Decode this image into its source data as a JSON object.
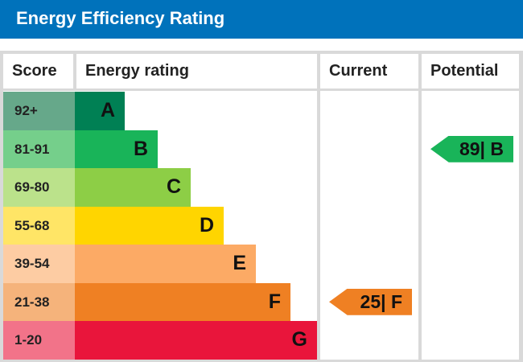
{
  "title": "Energy Efficiency Rating",
  "chart_data": {
    "type": "bar",
    "columns": [
      "Score",
      "Energy rating",
      "Current",
      "Potential"
    ],
    "bands": [
      {
        "letter": "A",
        "score": "92+",
        "color": "#008054",
        "light": "#66a88a"
      },
      {
        "letter": "B",
        "score": "81-91",
        "color": "#19b459",
        "light": "#75cf8b"
      },
      {
        "letter": "C",
        "score": "69-80",
        "color": "#8dce46",
        "light": "#bbe28b"
      },
      {
        "letter": "D",
        "score": "55-68",
        "color": "#ffd500",
        "light": "#ffe566"
      },
      {
        "letter": "E",
        "score": "39-54",
        "color": "#fcaa65",
        "light": "#fdcca3"
      },
      {
        "letter": "F",
        "score": "21-38",
        "color": "#ef8023",
        "light": "#f5b37b"
      },
      {
        "letter": "G",
        "score": "1-20",
        "color": "#e9153b",
        "light": "#f27389"
      }
    ],
    "current": {
      "value": 25,
      "band": "F",
      "label": "25| F",
      "color": "#ef8023"
    },
    "potential": {
      "value": 89,
      "band": "B",
      "label": "89| B",
      "color": "#19b459"
    }
  }
}
